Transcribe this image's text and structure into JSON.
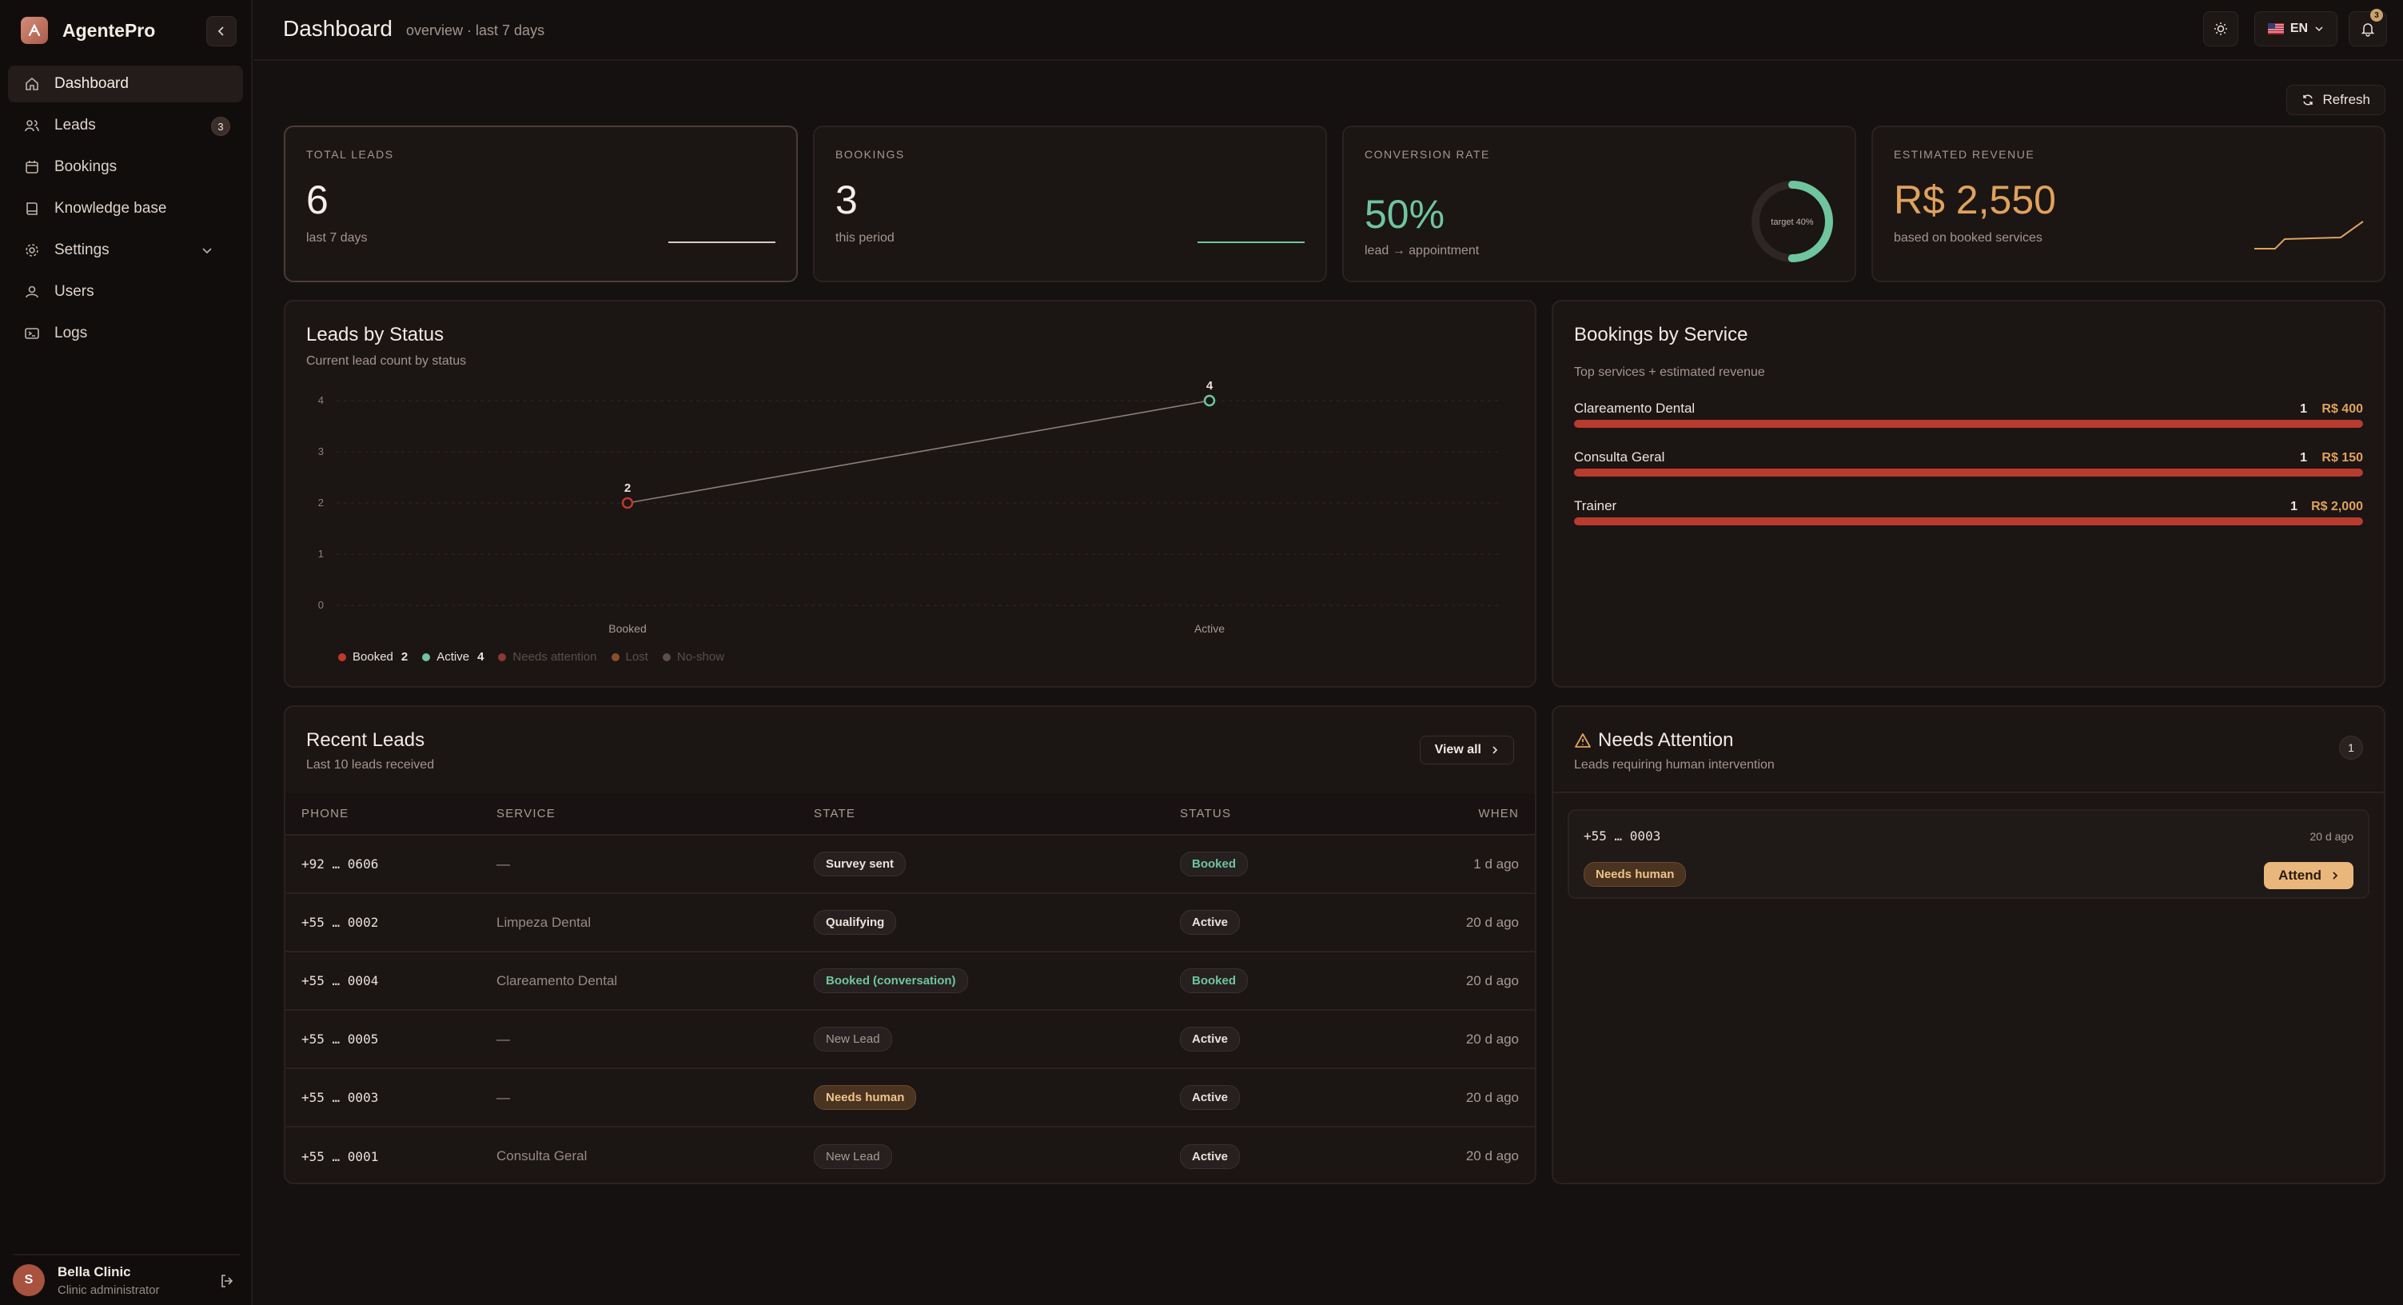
{
  "app": {
    "name": "AgentePro"
  },
  "sidebar": {
    "items": [
      {
        "label": "Dashboard",
        "icon": "home-icon",
        "active": true
      },
      {
        "label": "Leads",
        "icon": "users-icon",
        "badge": "3"
      },
      {
        "label": "Bookings",
        "icon": "calendar-icon"
      },
      {
        "label": "Knowledge base",
        "icon": "book-icon"
      },
      {
        "label": "Settings",
        "icon": "gear-icon",
        "expandable": true
      },
      {
        "label": "Users",
        "icon": "user-icon"
      },
      {
        "label": "Logs",
        "icon": "terminal-icon"
      }
    ],
    "user": {
      "initial": "S",
      "name": "Bella Clinic",
      "role": "Clinic administrator"
    }
  },
  "header": {
    "title": "Dashboard",
    "subtitle": "overview · last 7 days",
    "language": "EN",
    "notification_count": "3"
  },
  "refresh_label": "Refresh",
  "kpis": {
    "total_leads": {
      "label": "TOTAL LEADS",
      "value": "6",
      "sub": "last 7 days"
    },
    "bookings": {
      "label": "BOOKINGS",
      "value": "3",
      "sub": "this period"
    },
    "conversion": {
      "label": "CONVERSION RATE",
      "value": "50%",
      "sub": "lead → appointment",
      "ring_label": "target 40%",
      "ring_fraction": 0.5
    },
    "revenue": {
      "label": "ESTIMATED REVENUE",
      "value": "R$ 2,550",
      "sub": "based on booked services"
    }
  },
  "colors": {
    "accent_green": "#6fc59e",
    "accent_red": "#c0392b",
    "accent_amber": "#e0a25b"
  },
  "leads_by_status": {
    "title": "Leads by Status",
    "subtitle": "Current lead count by status",
    "legend": [
      {
        "label": "Booked",
        "count": "2",
        "color": "#c0392b"
      },
      {
        "label": "Active",
        "count": "4",
        "color": "#6fc59e"
      },
      {
        "label": "Needs attention",
        "count": "",
        "color": "#8a3a2e"
      },
      {
        "label": "Lost",
        "count": "",
        "color": "#8a4e2a"
      },
      {
        "label": "No-show",
        "count": "",
        "color": "#5a4f4a"
      }
    ]
  },
  "chart_data": {
    "type": "line",
    "categories": [
      "Booked",
      "Active"
    ],
    "values": [
      2,
      4
    ],
    "point_colors": [
      "#c0392b",
      "#6fc59e"
    ],
    "ylim": [
      0,
      4
    ],
    "yticks": [
      "0",
      "1",
      "2",
      "3",
      "4"
    ],
    "grid": true,
    "title": "",
    "xlabel": "",
    "ylabel": ""
  },
  "bookings_by_service": {
    "title": "Bookings by Service",
    "subtitle": "Top services + estimated revenue",
    "items": [
      {
        "name": "Clareamento Dental",
        "count": "1",
        "revenue": "R$ 400",
        "fraction": 1.0
      },
      {
        "name": "Consulta Geral",
        "count": "1",
        "revenue": "R$ 150",
        "fraction": 1.0
      },
      {
        "name": "Trainer",
        "count": "1",
        "revenue": "R$ 2,000",
        "fraction": 1.0
      }
    ]
  },
  "recent_leads": {
    "title": "Recent Leads",
    "subtitle": "Last 10 leads received",
    "view_all": "View all",
    "columns": [
      "PHONE",
      "SERVICE",
      "STATE",
      "STATUS",
      "WHEN"
    ],
    "rows": [
      {
        "phone": "+92 … 0606",
        "service": "—",
        "state": "Survey sent",
        "state_style": "default",
        "status": "Booked",
        "when": "1 d ago"
      },
      {
        "phone": "+55 … 0002",
        "service": "Limpeza Dental",
        "state": "Qualifying",
        "state_style": "default",
        "status": "Active",
        "when": "20 d ago"
      },
      {
        "phone": "+55 … 0004",
        "service": "Clareamento Dental",
        "state": "Booked (conversation)",
        "state_style": "green",
        "status": "Booked",
        "when": "20 d ago"
      },
      {
        "phone": "+55 … 0005",
        "service": "—",
        "state": "New Lead",
        "state_style": "muted",
        "status": "Active",
        "when": "20 d ago"
      },
      {
        "phone": "+55 … 0003",
        "service": "—",
        "state": "Needs human",
        "state_style": "amber",
        "status": "Active",
        "when": "20 d ago"
      },
      {
        "phone": "+55 … 0001",
        "service": "Consulta Geral",
        "state": "New Lead",
        "state_style": "muted",
        "status": "Active",
        "when": "20 d ago"
      }
    ]
  },
  "needs_attention": {
    "title": "Needs Attention",
    "subtitle": "Leads requiring human intervention",
    "count": "1",
    "item": {
      "phone": "+55 … 0003",
      "when": "20 d ago",
      "tag": "Needs human",
      "action": "Attend"
    }
  }
}
